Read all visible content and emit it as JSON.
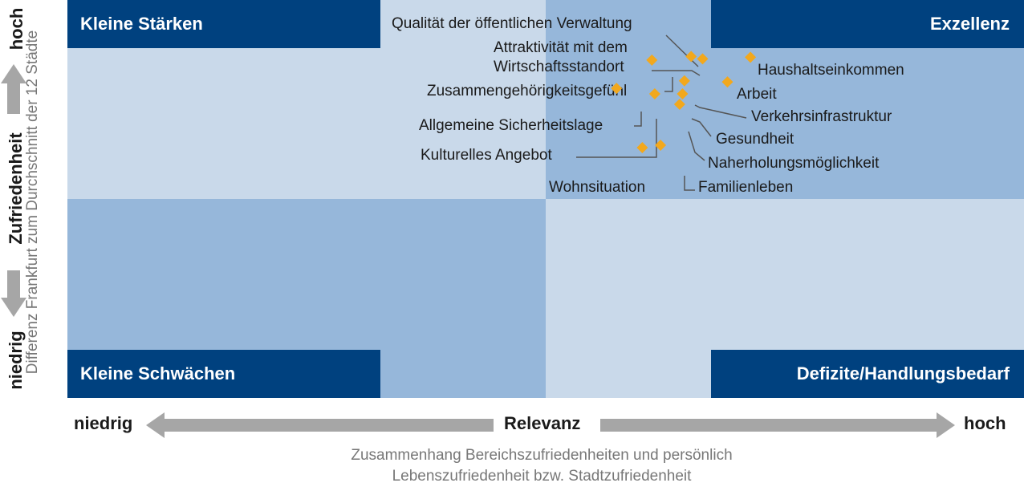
{
  "quadrants": {
    "top_left": "Kleine Stärken",
    "top_right": "Exzellenz",
    "bottom_left": "Kleine Schwächen",
    "bottom_right": "Defizite/Handlungsbedarf"
  },
  "y_axis": {
    "high": "hoch",
    "low": "niedrig",
    "title": "Zufriedenheit",
    "subtitle": "Differenz Frankfurt zum Durchschnitt der 12 Städte"
  },
  "x_axis": {
    "low": "niedrig",
    "title": "Relevanz",
    "high": "hoch"
  },
  "caption": {
    "line1": "Zusammenhang Bereichszufriedenheiten und persönlich",
    "line2": "Lebenszufriedenheit bzw. Stadtzufriedenheit"
  },
  "colors": {
    "banner": "#00417f",
    "light": "#c9d9ea",
    "mid": "#96b7da",
    "marker": "#f2a81d"
  },
  "chart_data": {
    "type": "scatter",
    "title": "",
    "xlabel": "Relevanz",
    "ylabel": "Zufriedenheit",
    "points": [
      {
        "label": "Qualität der öffentlichen Verwaltung",
        "x": 0.652,
        "y": 0.858
      },
      {
        "label": "Attraktivität mit dem Wirtschaftsstandort",
        "x": 0.664,
        "y": 0.852
      },
      {
        "label": "Haushaltseinkommen",
        "x": 0.714,
        "y": 0.856
      },
      {
        "label": "Zusammengehörigkeitsgefühl",
        "x": 0.611,
        "y": 0.849
      },
      {
        "label": "Arbeit",
        "x": 0.69,
        "y": 0.794
      },
      {
        "label": "Verkehrsinfrastruktur",
        "x": 0.645,
        "y": 0.797
      },
      {
        "label": "Allgemeine Sicherheitslage",
        "x": 0.574,
        "y": 0.778
      },
      {
        "label": "Kulturelles Angebot",
        "x": 0.614,
        "y": 0.764
      },
      {
        "label": "Gesundheit",
        "x": 0.643,
        "y": 0.764
      },
      {
        "label": "Naherholungsmöglichkeit",
        "x": 0.64,
        "y": 0.738
      },
      {
        "label": "Wohnsituation",
        "x": 0.601,
        "y": 0.629
      },
      {
        "label": "Familienleben",
        "x": 0.62,
        "y": 0.635
      }
    ]
  }
}
